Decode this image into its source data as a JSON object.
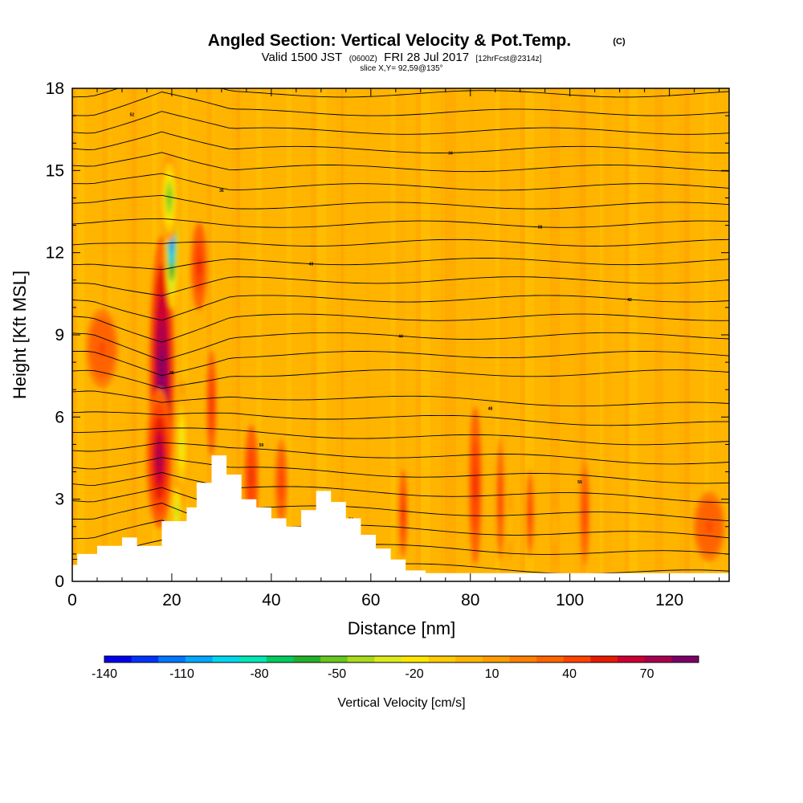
{
  "chart_data": {
    "type": "heatmap",
    "title": "Angled Section: Vertical Velocity & Pot.Temp.",
    "title_suffix": "(C)",
    "subtitle": {
      "valid": "Valid 1500 JST",
      "utc": "(0600Z)",
      "date": "FRI 28 Jul 2017",
      "forecast": "[12hrFcst@2314z]"
    },
    "slice_label": "slice X,Y= 92,59@135°",
    "xlabel": "Distance [nm]",
    "ylabel": "Height [Kft MSL]",
    "xlim": [
      0,
      132
    ],
    "ylim": [
      0,
      18
    ],
    "x_ticks": [
      0,
      20,
      40,
      60,
      80,
      100,
      120
    ],
    "y_ticks": [
      0,
      3,
      6,
      9,
      12,
      15,
      18
    ],
    "colorbar": {
      "title": "Vertical Velocity [cm/s]",
      "tick_labels": [
        "-140",
        "-110",
        "-80",
        "-50",
        "-20",
        "10",
        "40",
        "70"
      ],
      "tick_values": [
        -140,
        -110,
        -80,
        -50,
        -20,
        10,
        40,
        70
      ],
      "min": -140,
      "max": 80,
      "step": 10,
      "colors": [
        "#0000ee",
        "#0033ff",
        "#0077ff",
        "#00a8ff",
        "#00d8f0",
        "#00e8b8",
        "#00cc60",
        "#22b22a",
        "#66c81e",
        "#a8dc1a",
        "#dcea1c",
        "#ffe600",
        "#ffcc00",
        "#ffb400",
        "#ff9c00",
        "#ff8000",
        "#ff6400",
        "#ff4400",
        "#e81a00",
        "#cc0033",
        "#a8004e",
        "#7c0066"
      ]
    },
    "theta_contour_labels": [
      "52",
      "54",
      "56",
      "50",
      "48",
      "46",
      "44",
      "42",
      "40",
      "38",
      "36",
      "34"
    ],
    "terrain_profile": {
      "x": [
        0,
        1,
        1,
        5,
        5,
        10,
        10,
        13,
        13,
        18,
        18,
        23,
        23,
        25,
        25,
        28,
        28,
        31,
        31,
        34,
        34,
        37,
        37,
        40,
        40,
        43,
        43,
        46,
        46,
        49,
        49,
        52,
        52,
        55,
        55,
        58,
        58,
        61,
        61,
        64,
        64,
        67,
        67,
        71,
        71,
        132
      ],
      "y": [
        0.6,
        0.6,
        1.0,
        1.0,
        1.3,
        1.3,
        1.6,
        1.6,
        1.3,
        1.3,
        2.2,
        2.2,
        2.7,
        2.7,
        3.6,
        3.6,
        4.6,
        4.6,
        3.9,
        3.9,
        3.0,
        3.0,
        2.7,
        2.7,
        2.3,
        2.3,
        2.0,
        2.0,
        2.6,
        2.6,
        3.3,
        3.3,
        2.9,
        2.9,
        2.3,
        2.3,
        1.7,
        1.7,
        1.2,
        1.2,
        0.8,
        0.8,
        0.4,
        0.4,
        0.3,
        0.3
      ]
    },
    "velocity_features": [
      {
        "x": 18,
        "y": 7.5,
        "sx": 1.6,
        "sy": 3.2,
        "value": 80
      },
      {
        "x": 17.5,
        "y": 4.5,
        "sx": 1.6,
        "sy": 1.6,
        "value": 60
      },
      {
        "x": 20,
        "y": 12.5,
        "sx": 0.9,
        "sy": 1.6,
        "value": -120
      },
      {
        "x": 19.5,
        "y": 14,
        "sx": 1.2,
        "sy": 1.0,
        "value": -60
      },
      {
        "x": 22,
        "y": 5,
        "sx": 0.9,
        "sy": 1.5,
        "value": -40
      },
      {
        "x": 21,
        "y": 2.6,
        "sx": 0.7,
        "sy": 0.7,
        "value": -50
      },
      {
        "x": 25.5,
        "y": 11.5,
        "sx": 1.0,
        "sy": 1.0,
        "value": 45
      },
      {
        "x": 28,
        "y": 6.5,
        "sx": 0.6,
        "sy": 1.2,
        "value": 40
      },
      {
        "x": 36,
        "y": 3.8,
        "sx": 0.9,
        "sy": 1.2,
        "value": 40
      },
      {
        "x": 42,
        "y": 3.6,
        "sx": 0.8,
        "sy": 1.0,
        "value": 35
      },
      {
        "x": 6,
        "y": 8.5,
        "sx": 2.0,
        "sy": 0.9,
        "value": 30
      },
      {
        "x": 66.5,
        "y": 2.5,
        "sx": 0.5,
        "sy": 1.0,
        "value": 40
      },
      {
        "x": 81,
        "y": 3.5,
        "sx": 0.8,
        "sy": 1.8,
        "value": 45
      },
      {
        "x": 86,
        "y": 3.0,
        "sx": 0.5,
        "sy": 1.4,
        "value": 35
      },
      {
        "x": 92,
        "y": 2.5,
        "sx": 0.5,
        "sy": 1.0,
        "value": 35
      },
      {
        "x": 103,
        "y": 2.5,
        "sx": 0.6,
        "sy": 1.2,
        "value": 38
      },
      {
        "x": 128,
        "y": 2.0,
        "sx": 2.0,
        "sy": 0.8,
        "value": 30
      },
      {
        "x": 88,
        "y": 2.0,
        "sx": 0.4,
        "sy": 0.8,
        "value": -20
      },
      {
        "x": 97,
        "y": 2.0,
        "sx": 0.4,
        "sy": 0.8,
        "value": -15
      }
    ]
  }
}
